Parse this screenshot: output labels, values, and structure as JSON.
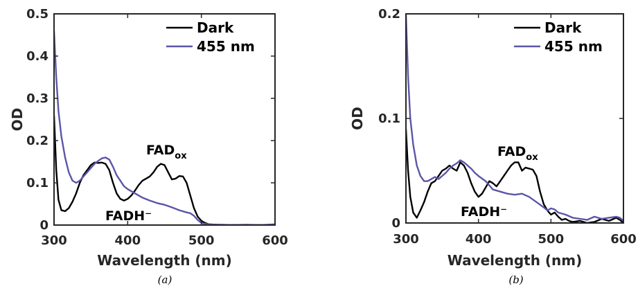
{
  "chart_data": [
    {
      "type": "line",
      "panel_label": "(a)",
      "xlabel": "Wavelength (nm)",
      "ylabel": "OD",
      "xlim": [
        300,
        600
      ],
      "ylim": [
        0,
        0.5
      ],
      "xticks": [
        300,
        400,
        500,
        600
      ],
      "xtick_labels": [
        "300",
        "400",
        "500",
        "600"
      ],
      "yticks": [
        0,
        0.1,
        0.2,
        0.3,
        0.4,
        0.5
      ],
      "ytick_labels": [
        "0",
        "0.1",
        "0.2",
        "0.3",
        "0.4",
        "0.5"
      ],
      "legend_position": "top-right",
      "series": [
        {
          "name": "Dark",
          "color": "#000000",
          "x": [
            300,
            303,
            306,
            310,
            315,
            320,
            325,
            330,
            335,
            340,
            345,
            350,
            355,
            360,
            365,
            370,
            375,
            380,
            385,
            390,
            395,
            400,
            405,
            410,
            415,
            420,
            425,
            430,
            435,
            440,
            445,
            450,
            455,
            460,
            465,
            470,
            475,
            480,
            485,
            490,
            495,
            500,
            505,
            510,
            520,
            530,
            540,
            560,
            580,
            600
          ],
          "y": [
            0.26,
            0.13,
            0.06,
            0.035,
            0.033,
            0.04,
            0.055,
            0.075,
            0.1,
            0.118,
            0.13,
            0.142,
            0.148,
            0.147,
            0.148,
            0.145,
            0.13,
            0.1,
            0.075,
            0.062,
            0.058,
            0.062,
            0.07,
            0.082,
            0.095,
            0.105,
            0.11,
            0.115,
            0.125,
            0.138,
            0.145,
            0.142,
            0.125,
            0.108,
            0.11,
            0.116,
            0.115,
            0.1,
            0.07,
            0.04,
            0.02,
            0.01,
            0.005,
            0.002,
            0.001,
            0.0,
            0.0,
            0.0,
            0.0,
            0.0
          ]
        },
        {
          "name": "455 nm",
          "color": "#5b55a8",
          "x": [
            300,
            303,
            306,
            310,
            315,
            320,
            325,
            330,
            335,
            340,
            345,
            350,
            355,
            360,
            365,
            370,
            375,
            380,
            385,
            390,
            395,
            400,
            410,
            420,
            430,
            440,
            450,
            460,
            470,
            480,
            485,
            490,
            495,
            500,
            505,
            510,
            520,
            530,
            540,
            560,
            580,
            600
          ],
          "y": [
            0.46,
            0.35,
            0.27,
            0.21,
            0.16,
            0.125,
            0.105,
            0.1,
            0.105,
            0.115,
            0.125,
            0.135,
            0.145,
            0.152,
            0.158,
            0.16,
            0.155,
            0.138,
            0.118,
            0.105,
            0.092,
            0.085,
            0.075,
            0.065,
            0.058,
            0.052,
            0.048,
            0.042,
            0.035,
            0.03,
            0.028,
            0.022,
            0.012,
            0.005,
            0.003,
            0.002,
            0.001,
            0.001,
            0.0,
            0.001,
            0.0,
            0.002
          ]
        }
      ],
      "annotations": [
        {
          "text": "FAD",
          "subscript": "ox",
          "x": 420,
          "y": 0.17
        },
        {
          "text": "FADH⁻",
          "x": 383,
          "y": 0.02
        }
      ]
    },
    {
      "type": "line",
      "panel_label": "(b)",
      "xlabel": "Wavelength (nm)",
      "ylabel": "OD",
      "xlim": [
        300,
        600
      ],
      "ylim": [
        0,
        0.2
      ],
      "xticks": [
        300,
        400,
        500,
        600
      ],
      "xtick_labels": [
        "300",
        "400",
        "500",
        "600"
      ],
      "yticks": [
        0,
        0.1,
        0.2
      ],
      "ytick_labels": [
        "0",
        "0.1",
        "0.2"
      ],
      "legend_position": "top-right",
      "series": [
        {
          "name": "Dark",
          "color": "#000000",
          "x": [
            300,
            303,
            306,
            310,
            315,
            320,
            325,
            330,
            335,
            340,
            345,
            350,
            355,
            360,
            365,
            370,
            375,
            380,
            385,
            390,
            395,
            400,
            405,
            410,
            415,
            420,
            425,
            430,
            435,
            440,
            445,
            450,
            455,
            460,
            465,
            470,
            475,
            480,
            485,
            490,
            495,
            500,
            505,
            510,
            515,
            520,
            525,
            530,
            540,
            550,
            560,
            570,
            580,
            590,
            595,
            600
          ],
          "y": [
            0.09,
            0.05,
            0.025,
            0.01,
            0.005,
            0.012,
            0.02,
            0.03,
            0.038,
            0.04,
            0.045,
            0.05,
            0.052,
            0.055,
            0.052,
            0.05,
            0.058,
            0.055,
            0.048,
            0.038,
            0.03,
            0.025,
            0.028,
            0.034,
            0.04,
            0.038,
            0.035,
            0.04,
            0.045,
            0.05,
            0.055,
            0.058,
            0.058,
            0.05,
            0.053,
            0.052,
            0.051,
            0.045,
            0.03,
            0.018,
            0.012,
            0.008,
            0.01,
            0.006,
            0.003,
            0.004,
            0.002,
            0.001,
            0.002,
            0.0,
            0.001,
            0.004,
            0.002,
            0.005,
            0.003,
            0.0
          ]
        },
        {
          "name": "455 nm",
          "color": "#5b55a8",
          "x": [
            300,
            303,
            306,
            310,
            315,
            320,
            325,
            330,
            335,
            340,
            345,
            350,
            355,
            360,
            365,
            370,
            375,
            380,
            385,
            390,
            395,
            400,
            410,
            420,
            430,
            440,
            450,
            460,
            470,
            480,
            490,
            495,
            500,
            505,
            510,
            520,
            530,
            540,
            550,
            560,
            570,
            580,
            590,
            595,
            600
          ],
          "y": [
            0.2,
            0.14,
            0.1,
            0.075,
            0.055,
            0.045,
            0.04,
            0.04,
            0.042,
            0.044,
            0.042,
            0.045,
            0.048,
            0.052,
            0.055,
            0.057,
            0.06,
            0.058,
            0.055,
            0.052,
            0.048,
            0.045,
            0.04,
            0.032,
            0.03,
            0.028,
            0.027,
            0.028,
            0.025,
            0.02,
            0.015,
            0.012,
            0.014,
            0.013,
            0.01,
            0.008,
            0.005,
            0.004,
            0.003,
            0.006,
            0.004,
            0.005,
            0.006,
            0.005,
            0.002
          ]
        }
      ],
      "annotations": [
        {
          "text": "FAD",
          "subscript": "ox",
          "x": 435,
          "y": 0.07
        },
        {
          "text": "FADH⁻",
          "x": 412,
          "y": 0.02
        }
      ]
    }
  ]
}
